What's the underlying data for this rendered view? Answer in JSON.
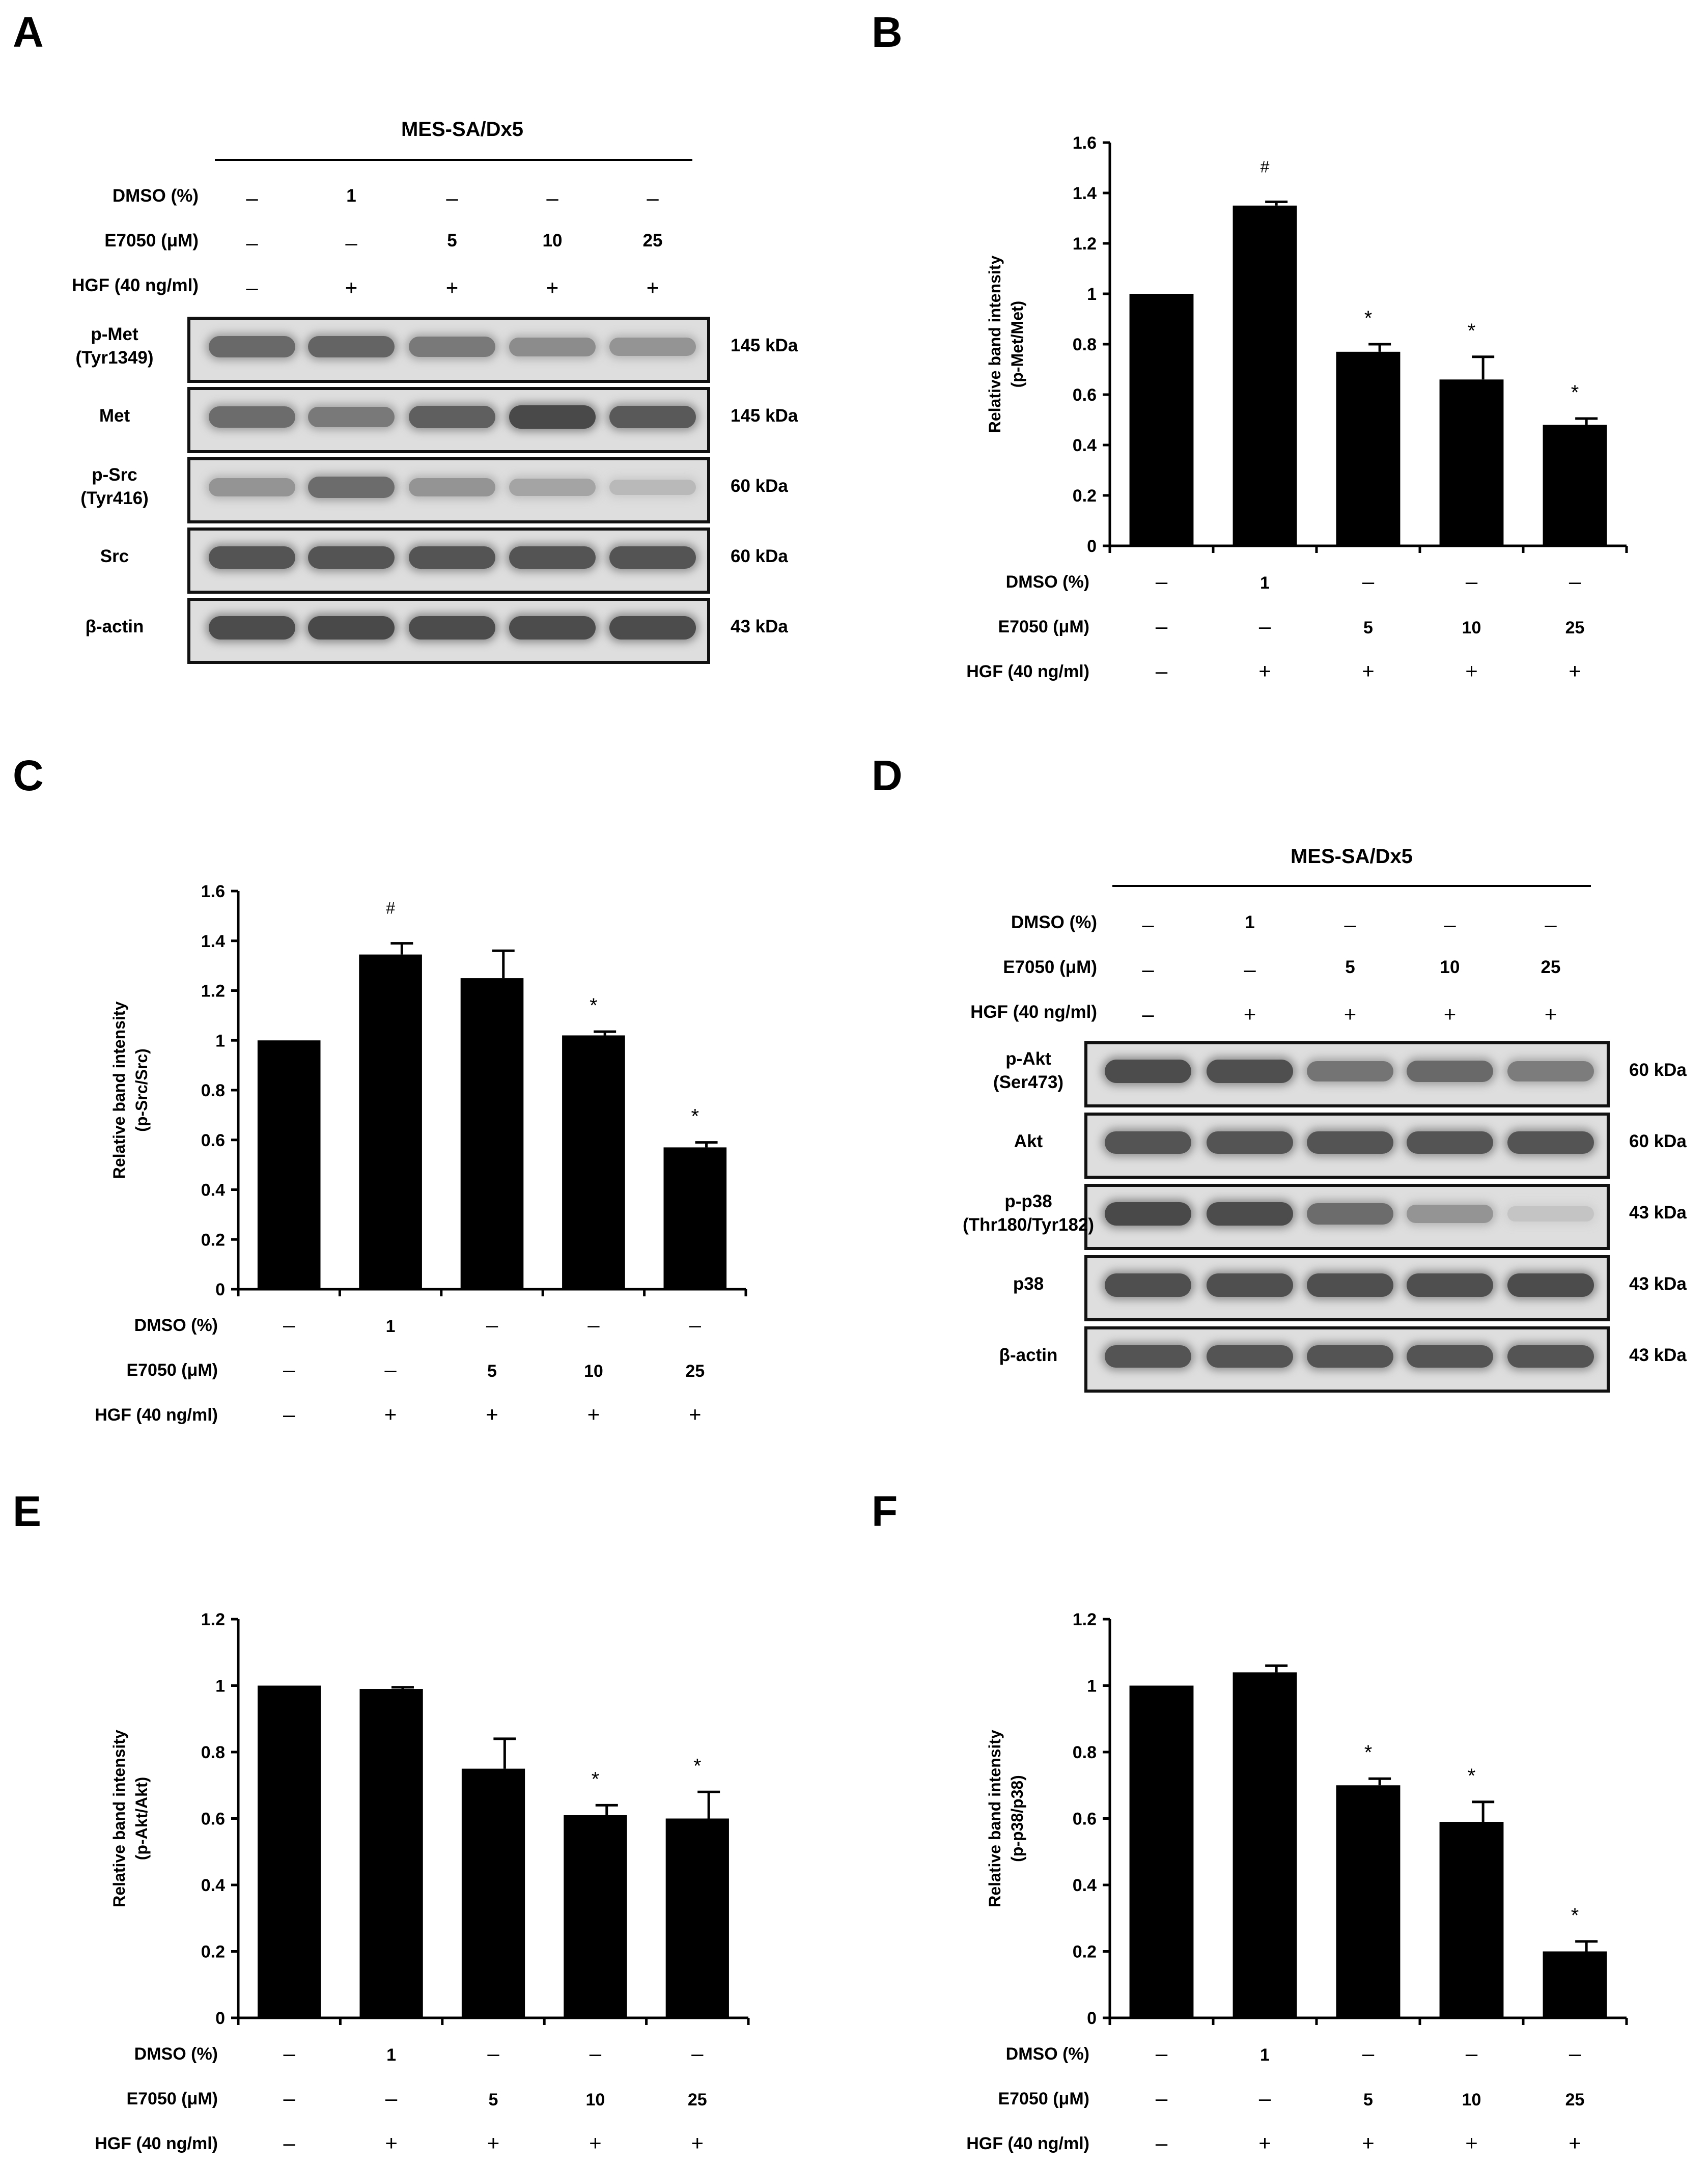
{
  "cell_line": "MES-SA/Dx5",
  "treatment_rows": [
    {
      "label": "DMSO (%)",
      "values": [
        "–",
        "1",
        "–",
        "–",
        "–"
      ]
    },
    {
      "label": "E7050 (μM)",
      "values": [
        "–",
        "–",
        "5",
        "10",
        "25"
      ]
    },
    {
      "label": "HGF (40 ng/ml)",
      "values": [
        "–",
        "+",
        "+",
        "+",
        "+"
      ]
    }
  ],
  "panels": {
    "A": {
      "letter": "A",
      "blots": [
        {
          "label1": "p-Met",
          "label2": "(Tyr1349)",
          "size": "145 kDa",
          "intensity": [
            0.72,
            0.75,
            0.62,
            0.5,
            0.45
          ]
        },
        {
          "label1": "Met",
          "label2": "",
          "size": "145 kDa",
          "intensity": [
            0.7,
            0.62,
            0.78,
            0.92,
            0.82
          ]
        },
        {
          "label1": "p-Src",
          "label2": "(Tyr416)",
          "size": "60 kDa",
          "intensity": [
            0.45,
            0.7,
            0.45,
            0.35,
            0.22
          ]
        },
        {
          "label1": "Src",
          "label2": "",
          "size": "60 kDa",
          "intensity": [
            0.85,
            0.85,
            0.85,
            0.85,
            0.85
          ]
        },
        {
          "label1": "β-actin",
          "label2": "",
          "size": "43 kDa",
          "intensity": [
            0.9,
            0.92,
            0.9,
            0.9,
            0.9
          ]
        }
      ]
    },
    "D": {
      "letter": "D",
      "blots": [
        {
          "label1": "p-Akt",
          "label2": "(Ser473)",
          "size": "60 kDa",
          "intensity": [
            0.9,
            0.88,
            0.65,
            0.72,
            0.6
          ]
        },
        {
          "label1": "Akt",
          "label2": "",
          "size": "60 kDa",
          "intensity": [
            0.85,
            0.85,
            0.85,
            0.85,
            0.85
          ]
        },
        {
          "label1": "p-p38",
          "label2": "(Thr180/Tyr182)",
          "size": "43 kDa",
          "intensity": [
            0.92,
            0.9,
            0.7,
            0.45,
            0.15
          ]
        },
        {
          "label1": "p38",
          "label2": "",
          "size": "43 kDa",
          "intensity": [
            0.88,
            0.88,
            0.88,
            0.88,
            0.9
          ]
        },
        {
          "label1": "β-actin",
          "label2": "",
          "size": "43 kDa",
          "intensity": [
            0.85,
            0.85,
            0.85,
            0.85,
            0.85
          ]
        }
      ]
    }
  },
  "chart_data": [
    {
      "panel": "B",
      "type": "bar",
      "ylabel": [
        "Relative band intensity",
        "(p-Met/Met)"
      ],
      "ylim": [
        0,
        1.6
      ],
      "yticks": [
        "0",
        "0.2",
        "0.4",
        "0.6",
        "0.8",
        "1",
        "1.2",
        "1.4",
        "1.6"
      ],
      "values": [
        1.0,
        1.35,
        0.77,
        0.66,
        0.48
      ],
      "errors": [
        0,
        0.015,
        0.03,
        0.09,
        0.025
      ],
      "marks": [
        "",
        "#",
        "*",
        "*",
        "*"
      ]
    },
    {
      "panel": "C",
      "type": "bar",
      "ylabel": [
        "Relative band intensity",
        "(p-Src/Src)"
      ],
      "ylim": [
        0,
        1.6
      ],
      "yticks": [
        "0",
        "0.2",
        "0.4",
        "0.6",
        "0.8",
        "1",
        "1.2",
        "1.4",
        "1.6"
      ],
      "values": [
        1.0,
        1.345,
        1.25,
        1.02,
        0.57
      ],
      "errors": [
        0,
        0.045,
        0.11,
        0.015,
        0.02
      ],
      "marks": [
        "",
        "#",
        "",
        "*",
        "*"
      ]
    },
    {
      "panel": "E",
      "type": "bar",
      "ylabel": [
        "Relative band intensity",
        "(p-Akt/Akt)"
      ],
      "ylim": [
        0,
        1.2
      ],
      "yticks": [
        "0",
        "0.2",
        "0.4",
        "0.6",
        "0.8",
        "1",
        "1.2"
      ],
      "values": [
        1.0,
        0.99,
        0.75,
        0.61,
        0.6
      ],
      "errors": [
        0,
        0.005,
        0.09,
        0.03,
        0.08
      ],
      "marks": [
        "",
        "",
        "",
        "*",
        "*"
      ]
    },
    {
      "panel": "F",
      "type": "bar",
      "ylabel": [
        "Relative band intensity",
        "(p-p38/p38)"
      ],
      "ylim": [
        0,
        1.2
      ],
      "yticks": [
        "0",
        "0.2",
        "0.4",
        "0.6",
        "0.8",
        "1",
        "1.2"
      ],
      "values": [
        1.0,
        1.04,
        0.7,
        0.59,
        0.2
      ],
      "errors": [
        0,
        0.02,
        0.02,
        0.06,
        0.03
      ],
      "marks": [
        "",
        "",
        "*",
        "*",
        "*"
      ]
    }
  ]
}
